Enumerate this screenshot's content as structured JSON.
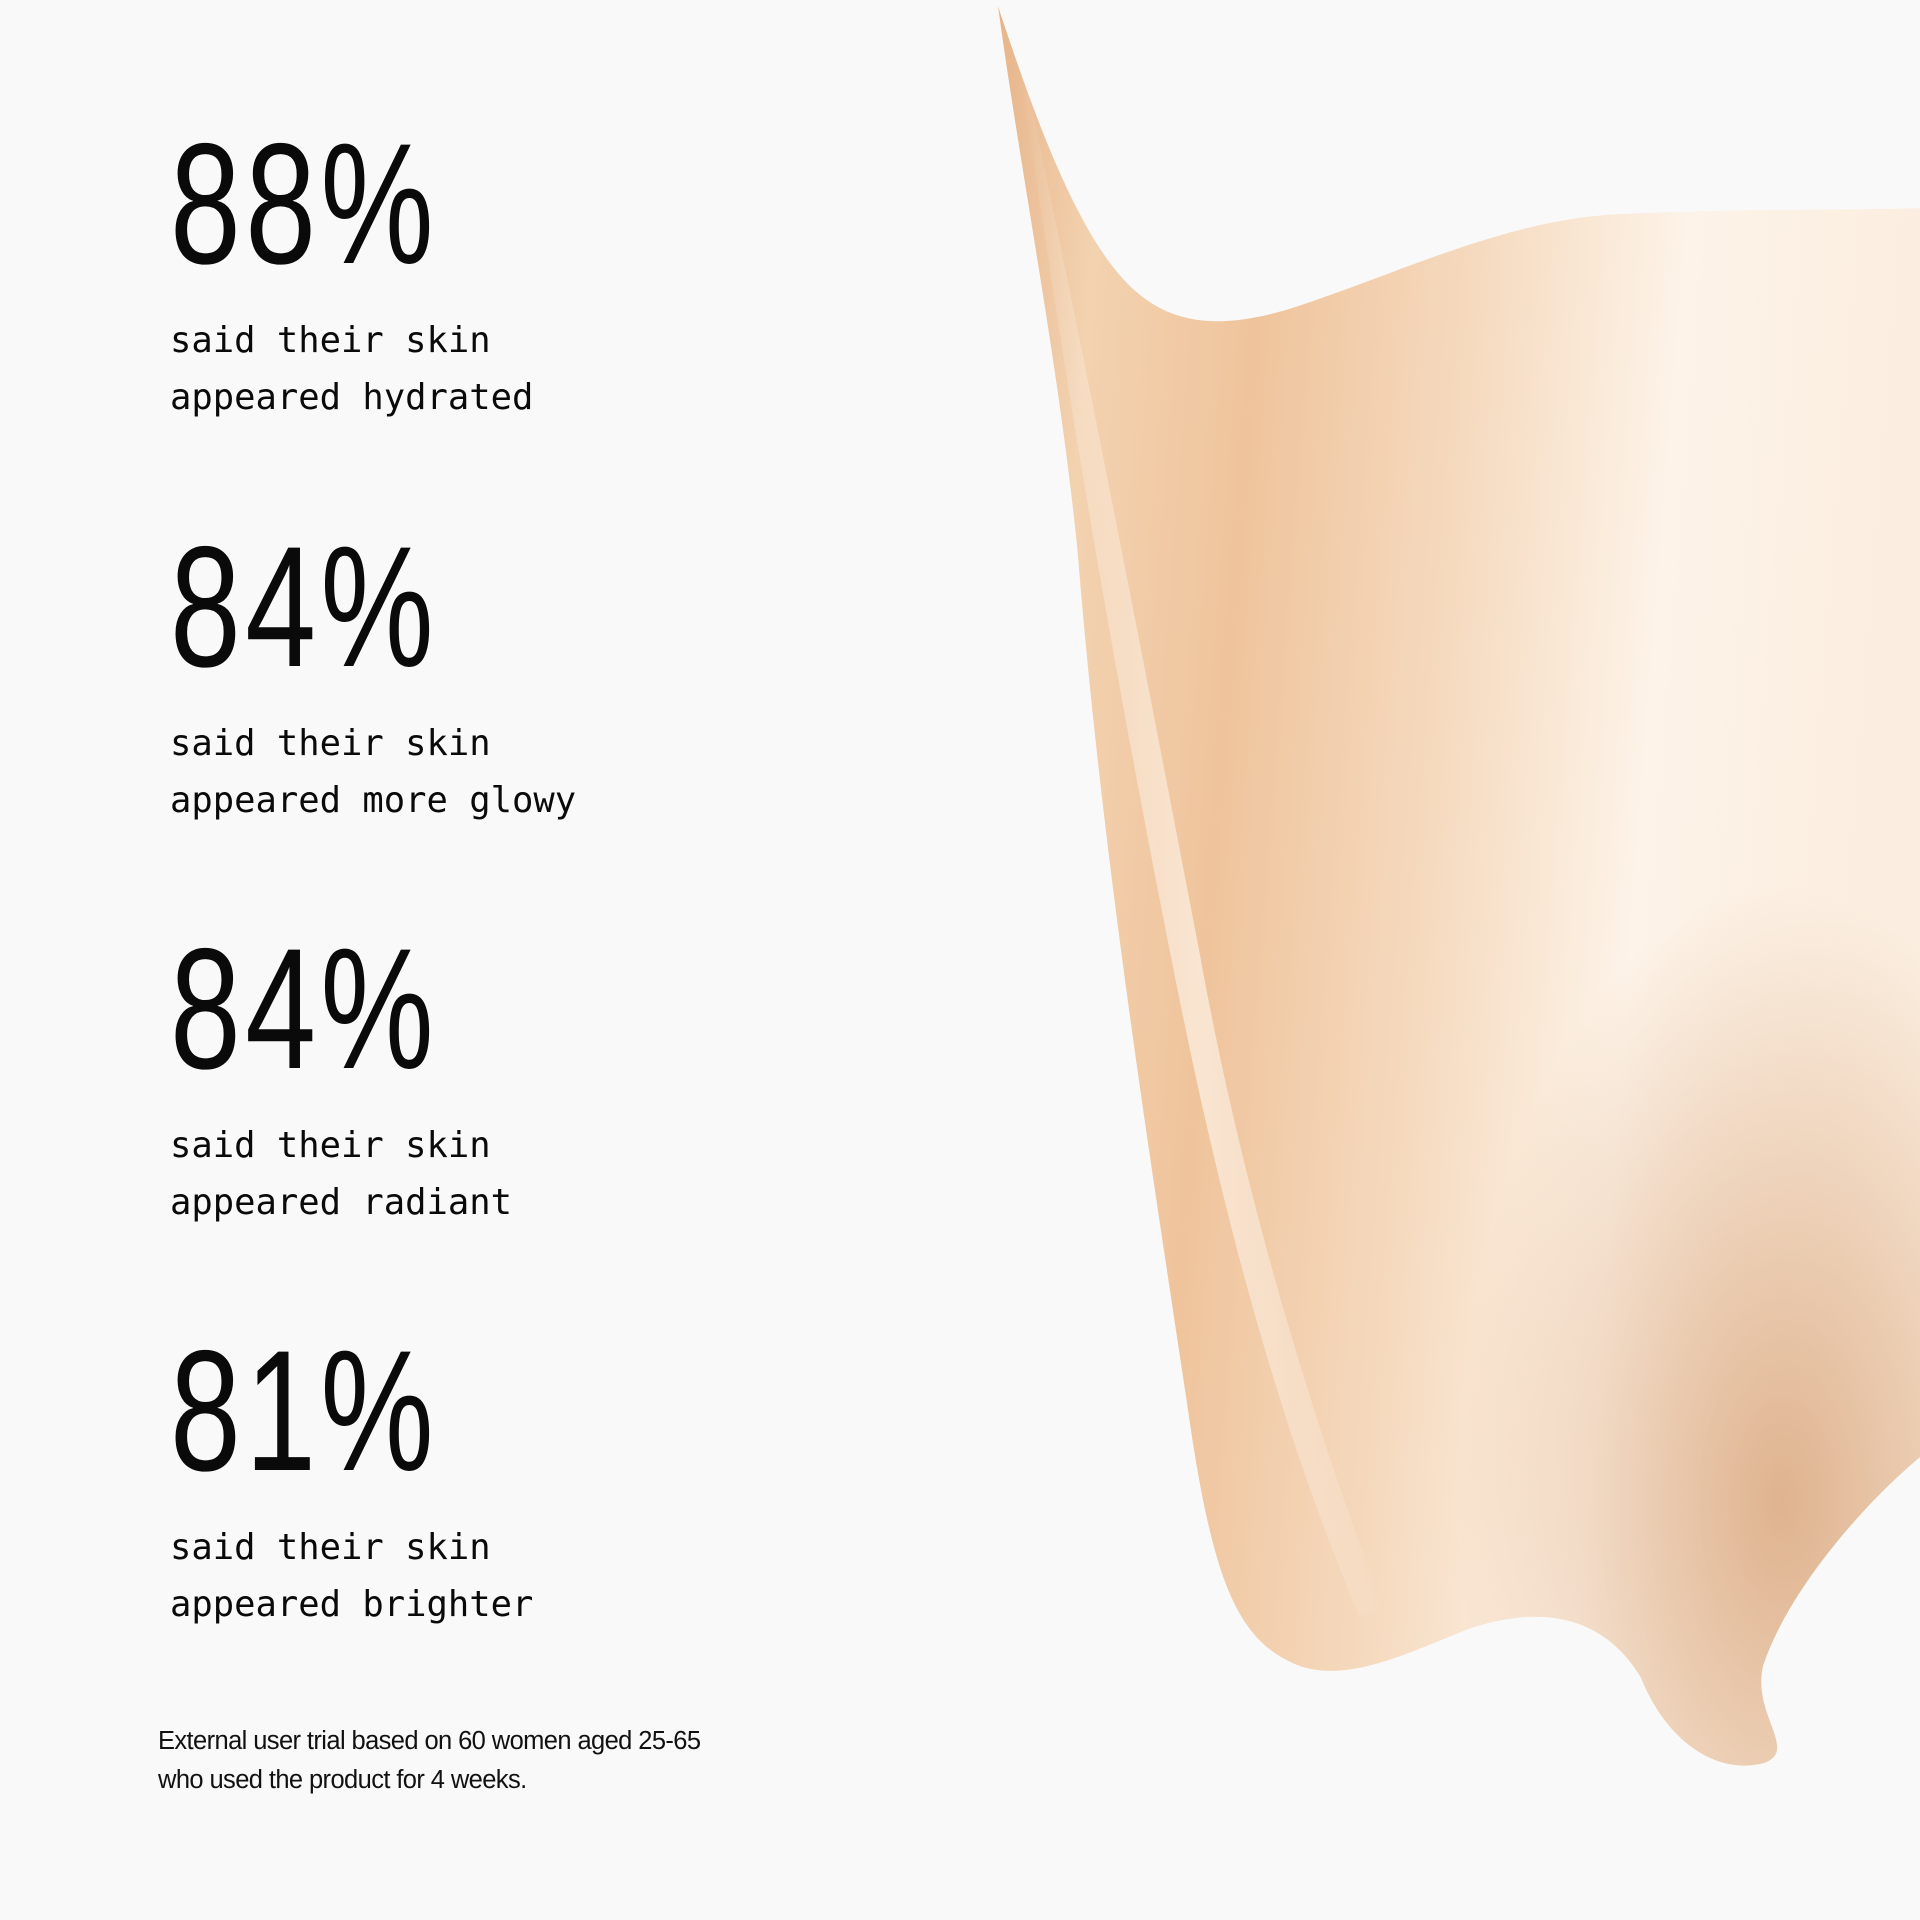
{
  "stats": [
    {
      "value": "88%",
      "line1": "said their skin",
      "line2": "appeared hydrated"
    },
    {
      "value": "84%",
      "line1": "said their skin",
      "line2": "appeared more glowy"
    },
    {
      "value": "84%",
      "line1": "said their skin",
      "line2": "appeared radiant"
    },
    {
      "value": "81%",
      "line1": "said their skin",
      "line2": "appeared brighter"
    }
  ],
  "footnote": {
    "line1": "External user trial based on 60 women aged 25-65",
    "line2": "who used the product for 4 weeks."
  },
  "colors": {
    "background": "#f9f9f9",
    "swatch_base": "#efc6a0",
    "swatch_highlight": "#fdf4ea",
    "swatch_shadow": "#d8a47a"
  }
}
